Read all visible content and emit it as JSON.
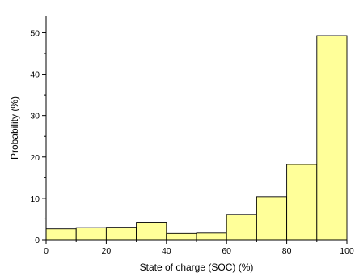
{
  "chart_data": {
    "type": "bar",
    "title": "",
    "xlabel": "State of charge (SOC) (%)",
    "ylabel": "Probability (%)",
    "bin_edges": [
      0,
      10,
      20,
      30,
      40,
      50,
      60,
      70,
      80,
      90,
      100
    ],
    "values": [
      2.6,
      2.9,
      3.0,
      4.2,
      1.5,
      1.6,
      6.1,
      10.4,
      18.2,
      49.3
    ],
    "xlim": [
      0,
      100
    ],
    "ylim": [
      0,
      54
    ],
    "xticks": [
      0,
      20,
      40,
      60,
      80,
      100
    ],
    "yticks": [
      0,
      10,
      20,
      30,
      40,
      50
    ],
    "bar_color": "#ffff99",
    "bar_edge_color": "#000000",
    "grid": false,
    "legend": "none"
  }
}
